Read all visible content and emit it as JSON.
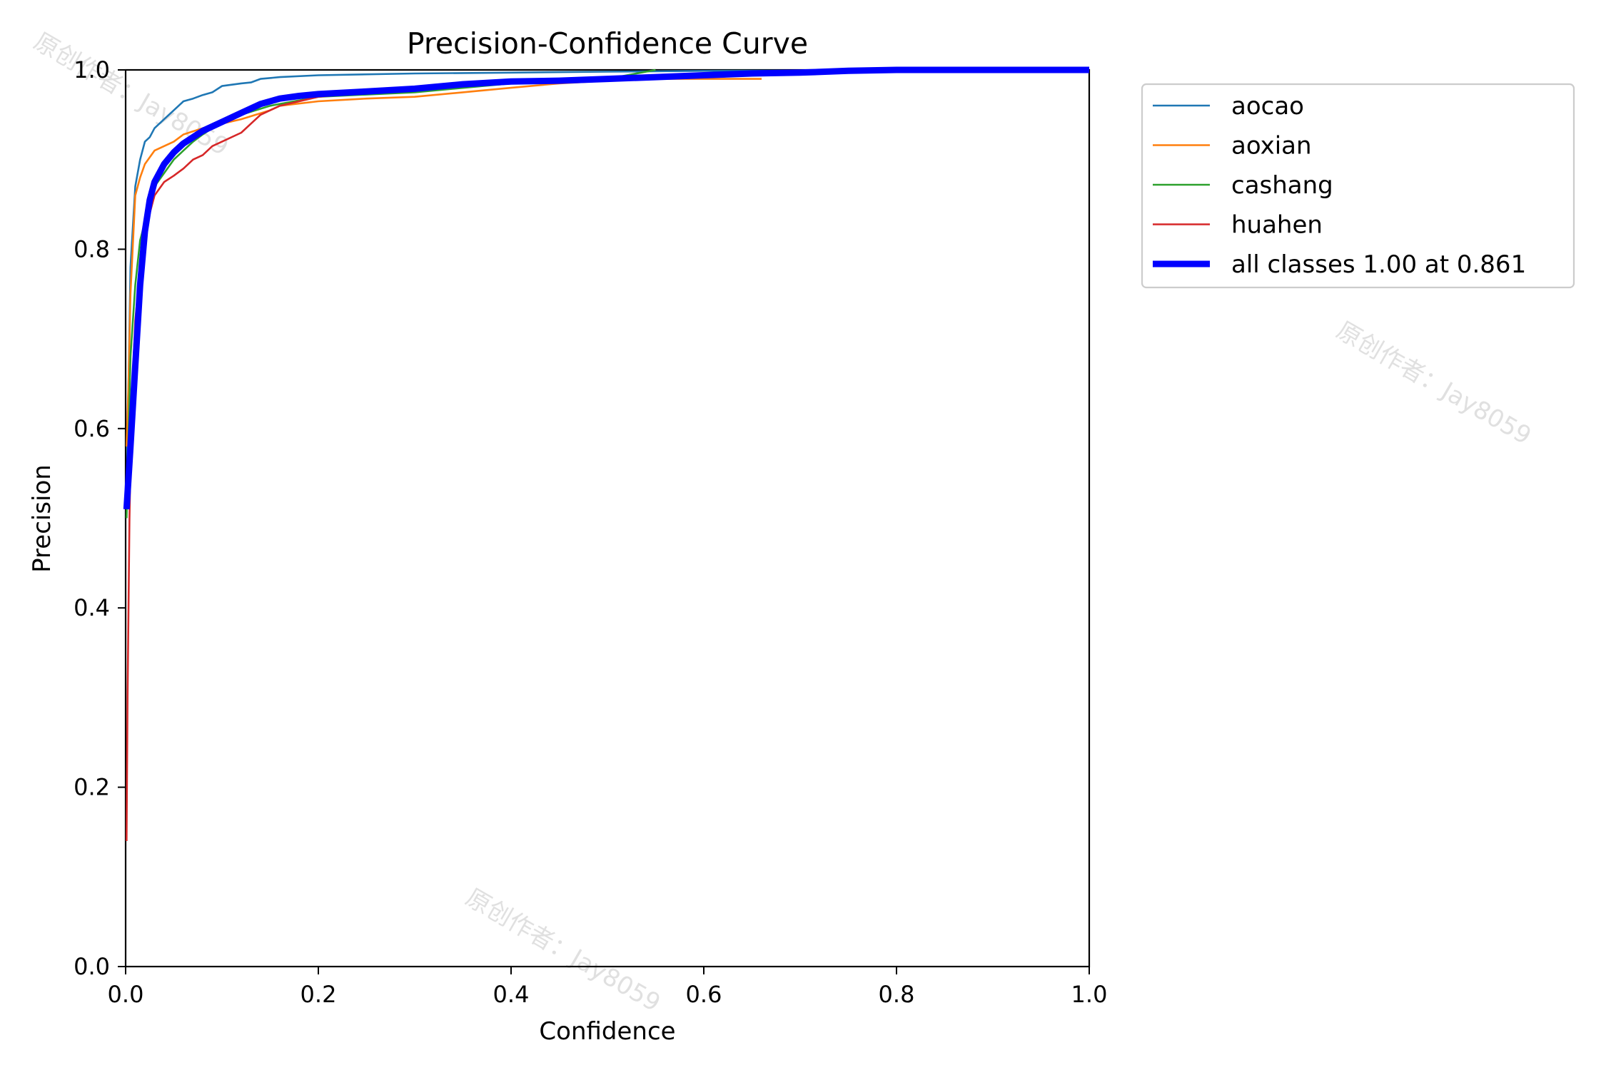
{
  "chart_data": {
    "type": "line",
    "title": "Precision-Confidence Curve",
    "xlabel": "Confidence",
    "ylabel": "Precision",
    "xlim": [
      0,
      1
    ],
    "ylim": [
      0,
      1
    ],
    "xticks": [
      "0.0",
      "0.2",
      "0.4",
      "0.6",
      "0.8",
      "1.0"
    ],
    "yticks": [
      "0.0",
      "0.2",
      "0.4",
      "0.6",
      "0.8",
      "1.0"
    ],
    "grid": false,
    "legend_placement": "outside upper-right",
    "series": [
      {
        "name": "aocao",
        "color": "#1f77b4",
        "emphasis": false,
        "x": [
          0.001,
          0.005,
          0.01,
          0.015,
          0.02,
          0.025,
          0.03,
          0.04,
          0.05,
          0.06,
          0.07,
          0.08,
          0.09,
          0.1,
          0.12,
          0.13,
          0.14,
          0.16,
          0.2,
          0.3,
          0.4,
          0.5,
          0.6,
          1.0
        ],
        "y": [
          0.52,
          0.78,
          0.87,
          0.9,
          0.92,
          0.925,
          0.935,
          0.945,
          0.955,
          0.965,
          0.968,
          0.972,
          0.975,
          0.982,
          0.985,
          0.986,
          0.99,
          0.992,
          0.994,
          0.996,
          0.997,
          0.998,
          0.999,
          1.0
        ]
      },
      {
        "name": "aoxian",
        "color": "#ff7f0e",
        "emphasis": false,
        "x": [
          0.001,
          0.003,
          0.005,
          0.01,
          0.015,
          0.02,
          0.03,
          0.04,
          0.05,
          0.06,
          0.08,
          0.1,
          0.12,
          0.15,
          0.16,
          0.2,
          0.25,
          0.3,
          0.35,
          0.4,
          0.45,
          0.5,
          0.55,
          0.6,
          0.65,
          0.66
        ],
        "y": [
          0.58,
          0.65,
          0.75,
          0.86,
          0.88,
          0.895,
          0.91,
          0.915,
          0.92,
          0.928,
          0.935,
          0.94,
          0.945,
          0.955,
          0.96,
          0.965,
          0.968,
          0.97,
          0.975,
          0.98,
          0.985,
          0.988,
          0.99,
          0.99,
          0.99,
          0.99
        ]
      },
      {
        "name": "cashang",
        "color": "#2ca02c",
        "emphasis": false,
        "x": [
          0.001,
          0.005,
          0.01,
          0.015,
          0.02,
          0.03,
          0.04,
          0.05,
          0.06,
          0.07,
          0.08,
          0.09,
          0.1,
          0.12,
          0.15,
          0.2,
          0.3,
          0.4,
          0.5,
          0.55
        ],
        "y": [
          0.5,
          0.68,
          0.76,
          0.81,
          0.83,
          0.87,
          0.885,
          0.9,
          0.91,
          0.92,
          0.928,
          0.935,
          0.94,
          0.95,
          0.96,
          0.97,
          0.975,
          0.985,
          0.99,
          1.0
        ]
      },
      {
        "name": "huahen",
        "color": "#d62728",
        "emphasis": false,
        "x": [
          0.001,
          0.002,
          0.004,
          0.006,
          0.01,
          0.015,
          0.02,
          0.03,
          0.04,
          0.05,
          0.06,
          0.07,
          0.08,
          0.09,
          0.1,
          0.12,
          0.13,
          0.14,
          0.16,
          0.2,
          0.3,
          0.4,
          0.5
        ],
        "y": [
          0.14,
          0.3,
          0.5,
          0.62,
          0.72,
          0.78,
          0.82,
          0.86,
          0.875,
          0.882,
          0.89,
          0.9,
          0.905,
          0.915,
          0.92,
          0.93,
          0.94,
          0.95,
          0.96,
          0.97,
          0.98,
          0.985,
          0.99
        ]
      },
      {
        "name": "all classes 1.00 at 0.861",
        "color": "#0000ff",
        "emphasis": true,
        "x": [
          0.001,
          0.005,
          0.01,
          0.015,
          0.02,
          0.025,
          0.03,
          0.04,
          0.05,
          0.06,
          0.07,
          0.08,
          0.1,
          0.12,
          0.14,
          0.16,
          0.18,
          0.2,
          0.25,
          0.3,
          0.35,
          0.4,
          0.45,
          0.5,
          0.55,
          0.6,
          0.65,
          0.7,
          0.75,
          0.8,
          0.861,
          0.9,
          1.0
        ],
        "y": [
          0.51,
          0.58,
          0.67,
          0.76,
          0.82,
          0.855,
          0.875,
          0.895,
          0.908,
          0.918,
          0.925,
          0.932,
          0.942,
          0.952,
          0.962,
          0.968,
          0.971,
          0.973,
          0.976,
          0.979,
          0.984,
          0.987,
          0.988,
          0.99,
          0.992,
          0.994,
          0.996,
          0.997,
          0.999,
          1.0,
          1.0,
          1.0,
          1.0
        ]
      }
    ]
  },
  "watermark_text": "原创作者：Jay8059"
}
